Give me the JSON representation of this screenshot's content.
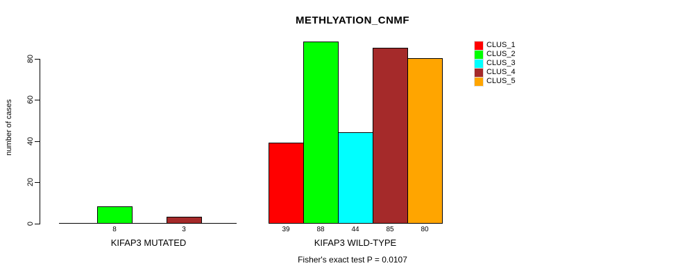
{
  "title": "METHLYATION_CNMF",
  "y_axis": {
    "label": "number of cases",
    "ticks": [
      0,
      20,
      40,
      60,
      80
    ]
  },
  "caption": "Fisher's exact test P = 0.0107",
  "legend": {
    "items": [
      {
        "label": "CLUS_1",
        "color": "#FF0000"
      },
      {
        "label": "CLUS_2",
        "color": "#00FF00"
      },
      {
        "label": "CLUS_3",
        "color": "#00FFFF"
      },
      {
        "label": "CLUS_4",
        "color": "#A52A2A"
      },
      {
        "label": "CLUS_5",
        "color": "#FFA500"
      }
    ]
  },
  "chart_data": {
    "type": "bar",
    "title": "METHLYATION_CNMF",
    "xlabel": "",
    "ylabel": "number of cases",
    "categories": [
      "KIFAP3 MUTATED",
      "KIFAP3 WILD-TYPE"
    ],
    "series": [
      {
        "name": "CLUS_1",
        "color": "#FF0000",
        "values": [
          0,
          39
        ]
      },
      {
        "name": "CLUS_2",
        "color": "#00FF00",
        "values": [
          8,
          88
        ]
      },
      {
        "name": "CLUS_3",
        "color": "#00FFFF",
        "values": [
          0,
          44
        ]
      },
      {
        "name": "CLUS_4",
        "color": "#A52A2A",
        "values": [
          3,
          85
        ]
      },
      {
        "name": "CLUS_5",
        "color": "#FFA500",
        "values": [
          0,
          80
        ]
      }
    ],
    "bar_value_labels": {
      "KIFAP3 MUTATED": [
        8,
        3
      ],
      "KIFAP3 WILD-TYPE": [
        39,
        88,
        44,
        85,
        80
      ],
      "note": "value printed under each non-zero bar only"
    },
    "yticks": [
      0,
      20,
      40,
      60,
      80
    ],
    "ylim": [
      0,
      88
    ],
    "grid": false,
    "legend_position": "right",
    "annotation": "Fisher's exact test P = 0.0107"
  }
}
